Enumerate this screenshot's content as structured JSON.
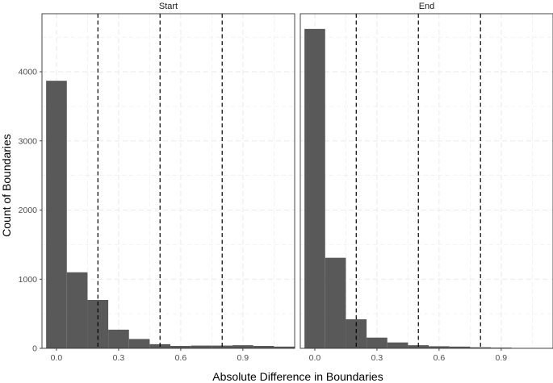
{
  "chart_data": {
    "type": "bar",
    "xlabel": "Absolute Difference in Boundaries",
    "ylabel": "Count of Boundaries",
    "xlim": [
      -0.07,
      1.15
    ],
    "ylim": [
      0,
      4840
    ],
    "x_ticks": [
      0.0,
      0.3,
      0.6,
      0.9
    ],
    "x_tick_labels": [
      "0.0",
      "0.3",
      "0.6",
      "0.9"
    ],
    "y_ticks": [
      0,
      1000,
      2000,
      3000,
      4000
    ],
    "y_tick_labels": [
      "0",
      "1000",
      "2000",
      "3000",
      "4000"
    ],
    "bin_width": 0.1,
    "vlines": [
      0.2,
      0.5,
      0.8
    ],
    "grid": true,
    "colors": {
      "bar": "#595959",
      "panel_border": "#333333",
      "grid": "#ebebeb",
      "vline": "#000000"
    },
    "panels": [
      {
        "title": "Start",
        "bin_starts": [
          -0.05,
          0.05,
          0.15,
          0.25,
          0.35,
          0.45,
          0.55,
          0.65,
          0.75,
          0.85,
          0.95,
          1.05
        ],
        "values": [
          3870,
          1100,
          700,
          270,
          135,
          60,
          35,
          40,
          40,
          45,
          35,
          25
        ]
      },
      {
        "title": "End",
        "bin_starts": [
          -0.05,
          0.05,
          0.15,
          0.25,
          0.35,
          0.45,
          0.55,
          0.65,
          0.75,
          0.85,
          0.95,
          1.05
        ],
        "values": [
          4620,
          1310,
          420,
          155,
          85,
          45,
          30,
          25,
          15,
          10,
          5,
          5
        ]
      }
    ]
  }
}
